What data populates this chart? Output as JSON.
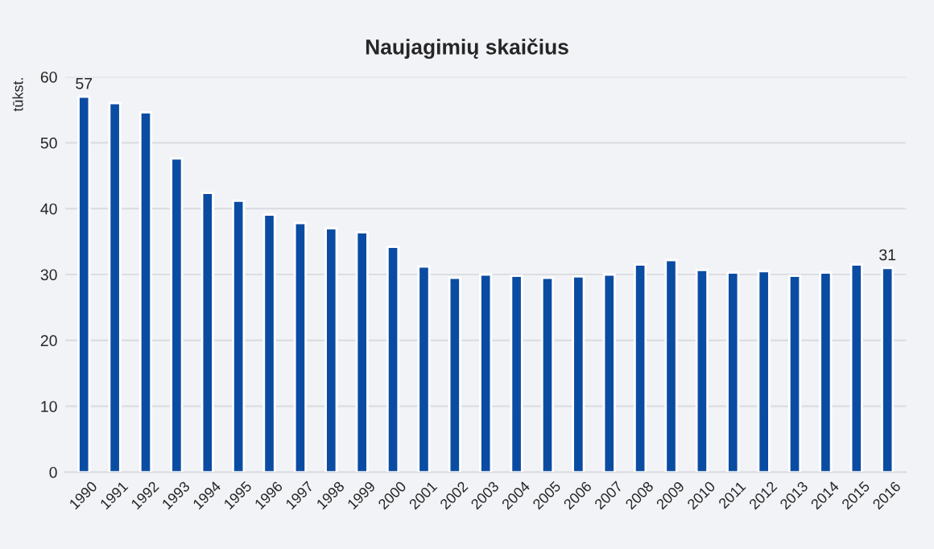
{
  "chart_data": {
    "type": "bar",
    "title": "Naujagimių skaičius",
    "ylabel": "tūkst.",
    "categories": [
      "1990",
      "1991",
      "1992",
      "1993",
      "1994",
      "1995",
      "1996",
      "1997",
      "1998",
      "1999",
      "2000",
      "2001",
      "2002",
      "2003",
      "2004",
      "2005",
      "2006",
      "2007",
      "2008",
      "2009",
      "2010",
      "2011",
      "2012",
      "2013",
      "2014",
      "2015",
      "2016"
    ],
    "values": [
      57,
      56.0,
      54.6,
      47.6,
      42.4,
      41.2,
      39.1,
      37.8,
      37.0,
      36.4,
      34.2,
      31.2,
      29.5,
      30.0,
      29.8,
      29.5,
      29.7,
      30.0,
      31.5,
      32.2,
      30.7,
      30.3,
      30.5,
      29.8,
      30.3,
      31.5,
      31
    ],
    "value_labels": [
      "57",
      null,
      null,
      null,
      null,
      null,
      null,
      null,
      null,
      null,
      null,
      null,
      null,
      null,
      null,
      null,
      null,
      null,
      null,
      null,
      null,
      null,
      null,
      null,
      null,
      null,
      "31"
    ],
    "color": "#0b4ca3",
    "ylim": [
      0,
      60
    ],
    "yticks": [
      0,
      10,
      20,
      30,
      40,
      50,
      60
    ],
    "grid": "y"
  }
}
